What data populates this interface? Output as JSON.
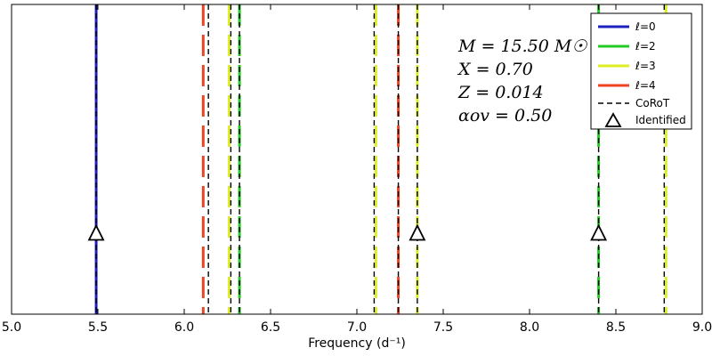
{
  "chart_data": {
    "type": "line",
    "xlabel": "Frequency (d⁻¹)",
    "ylabel": "",
    "xlim": [
      5.0,
      9.0
    ],
    "xticks": [
      "5.0",
      "5.5",
      "6.0",
      "6.5",
      "7.0",
      "7.5",
      "8.0",
      "8.5",
      "9.0"
    ],
    "grid": false,
    "legend_position": "top-right",
    "series": [
      {
        "name": "ℓ=0",
        "color": "#1f1fbf",
        "style": "solid",
        "x": [
          5.49
        ]
      },
      {
        "name": "ℓ=2",
        "color": "#22cc22",
        "style": "dashed",
        "x": [
          6.32,
          8.4
        ]
      },
      {
        "name": "ℓ=3",
        "color": "#ddee22",
        "style": "dashed",
        "x": [
          6.26,
          7.11,
          7.35,
          8.79
        ]
      },
      {
        "name": "ℓ=4",
        "color": "#ee4422",
        "style": "dashed",
        "x": [
          6.11,
          7.24
        ]
      },
      {
        "name": "CoRoT",
        "color": "#000000",
        "style": "dashed-thin",
        "x": [
          5.49,
          6.14,
          6.27,
          6.32,
          7.1,
          7.24,
          7.35,
          8.4,
          8.78
        ]
      },
      {
        "name": "Identified",
        "color": "#000000",
        "style": "triangle-marker",
        "x": [
          5.49,
          7.35,
          8.4
        ],
        "y": 0.26
      }
    ],
    "annotations": [
      "M = 15.50 M☉",
      "X = 0.70",
      "Z = 0.014",
      "αov = 0.50"
    ]
  }
}
